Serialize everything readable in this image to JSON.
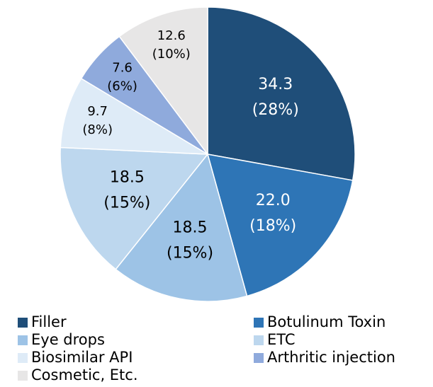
{
  "chart_data": {
    "type": "pie",
    "categories": [
      "Filler",
      "Botulinum Toxin",
      "Eye drops",
      "ETC",
      "Biosimilar API",
      "Arthritic injection",
      "Cosmetic, Etc."
    ],
    "values": [
      34.3,
      22.0,
      18.5,
      18.5,
      9.7,
      7.6,
      12.6
    ],
    "value_labels": [
      "34.3",
      "22.0",
      "18.5",
      "18.5",
      "9.7",
      "7.6",
      "12.6"
    ],
    "percentages": [
      28,
      18,
      15,
      15,
      8,
      6,
      10
    ],
    "percent_labels": [
      "(28%)",
      "(18%)",
      "(15%)",
      "(15%)",
      "(8%)",
      "(6%)",
      "(10%)"
    ],
    "colors": [
      "#1f4e79",
      "#2e75b6",
      "#9dc3e6",
      "#bdd7ee",
      "#deebf7",
      "#8faadc",
      "#e7e6e6"
    ],
    "label_colors": [
      "#ffffff",
      "#ffffff",
      "#000000",
      "#000000",
      "#000000",
      "#000000",
      "#000000"
    ]
  }
}
